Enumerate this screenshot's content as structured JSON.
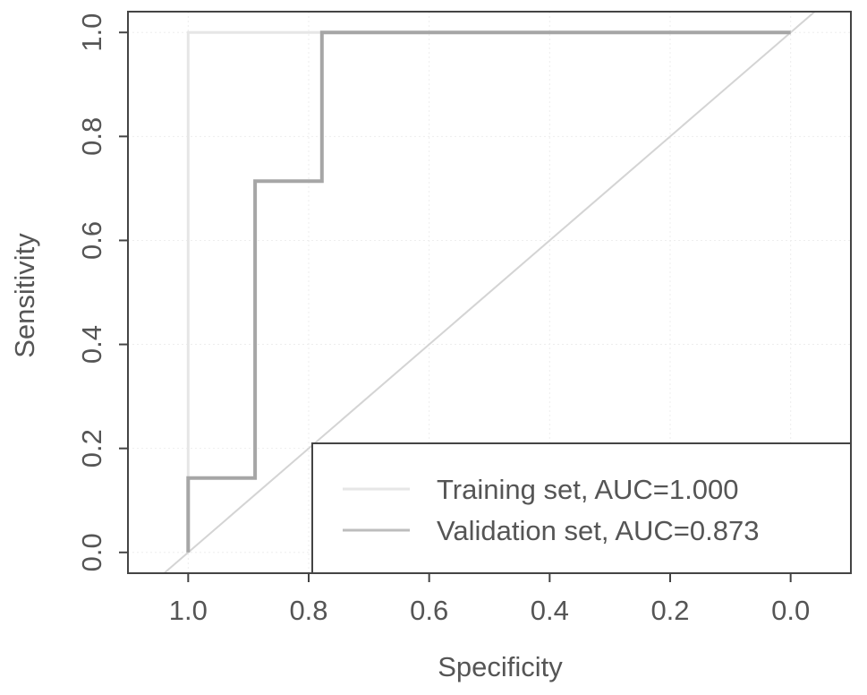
{
  "chart_data": {
    "type": "line",
    "title": "",
    "xlabel": "Specificity",
    "ylabel": "Sensitivity",
    "x_reversed": true,
    "xlim": [
      1.1,
      -0.1
    ],
    "ylim": [
      -0.04,
      1.04
    ],
    "x_ticks": [
      "1.0",
      "0.8",
      "0.6",
      "0.4",
      "0.2",
      "0.0"
    ],
    "y_ticks": [
      "0.0",
      "0.2",
      "0.4",
      "0.6",
      "0.8",
      "1.0"
    ],
    "grid": true,
    "legend_position": "bottom-right",
    "diagonal_reference": true,
    "series": [
      {
        "name": "Training set, AUC=1.000",
        "color": "#e6e6e6",
        "points": [
          [
            1.0,
            0.0
          ],
          [
            1.0,
            1.0
          ],
          [
            0.0,
            1.0
          ]
        ]
      },
      {
        "name": "Validation set, AUC=0.873",
        "color": "#a6a6a6",
        "points": [
          [
            1.0,
            0.0
          ],
          [
            1.0,
            0.143
          ],
          [
            0.889,
            0.143
          ],
          [
            0.889,
            0.714
          ],
          [
            0.778,
            0.714
          ],
          [
            0.778,
            1.0
          ],
          [
            0.0,
            1.0
          ]
        ]
      }
    ]
  }
}
